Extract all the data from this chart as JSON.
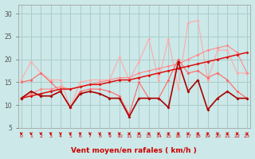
{
  "x": [
    0,
    1,
    2,
    3,
    4,
    5,
    6,
    7,
    8,
    9,
    10,
    11,
    12,
    13,
    14,
    15,
    16,
    17,
    18,
    19,
    20,
    21,
    22,
    23
  ],
  "line_light1": [
    15.5,
    19.5,
    17.0,
    15.5,
    15.5,
    9.5,
    15.0,
    15.5,
    15.5,
    15.5,
    20.5,
    15.5,
    19.5,
    24.5,
    15.5,
    24.5,
    13.5,
    28.0,
    28.5,
    15.5,
    22.0,
    22.0,
    17.0,
    17.0
  ],
  "line_light2": [
    15.0,
    15.5,
    17.0,
    15.0,
    13.0,
    9.5,
    13.0,
    13.5,
    13.5,
    13.0,
    12.0,
    8.0,
    15.0,
    11.5,
    11.5,
    15.5,
    20.0,
    17.0,
    17.5,
    16.0,
    17.0,
    15.5,
    13.0,
    11.5
  ],
  "line_slope_light": [
    11.5,
    12.5,
    13.5,
    13.5,
    14.0,
    13.5,
    14.0,
    14.5,
    15.0,
    15.5,
    16.0,
    16.0,
    17.0,
    17.5,
    18.0,
    18.5,
    19.0,
    20.0,
    21.0,
    22.0,
    22.5,
    23.0,
    21.5,
    17.0
  ],
  "line_slope_mid": [
    11.5,
    12.0,
    12.5,
    13.0,
    13.5,
    13.5,
    14.0,
    14.5,
    14.5,
    15.0,
    15.5,
    15.5,
    16.0,
    16.5,
    17.0,
    17.5,
    18.0,
    18.5,
    19.0,
    19.5,
    20.0,
    20.5,
    21.0,
    21.5
  ],
  "line_dark": [
    11.5,
    13.0,
    12.0,
    12.0,
    13.0,
    9.5,
    12.5,
    13.0,
    12.5,
    11.5,
    11.5,
    7.5,
    11.5,
    11.5,
    11.5,
    9.5,
    19.5,
    13.0,
    15.5,
    9.0,
    11.5,
    13.0,
    11.5,
    11.5
  ],
  "bg_color": "#cce8e8",
  "grid_color": "#aacccc",
  "color_light": "#ffaaaa",
  "color_mid_light": "#ff8888",
  "color_mid": "#ff6666",
  "color_dark": "#dd1111",
  "color_darkest": "#aa0000",
  "xlabel": "Vent moyen/en rafales ( km/h )",
  "ylim": [
    5,
    32
  ],
  "yticks": [
    5,
    10,
    15,
    20,
    25,
    30
  ],
  "xlim": [
    -0.3,
    23.3
  ]
}
